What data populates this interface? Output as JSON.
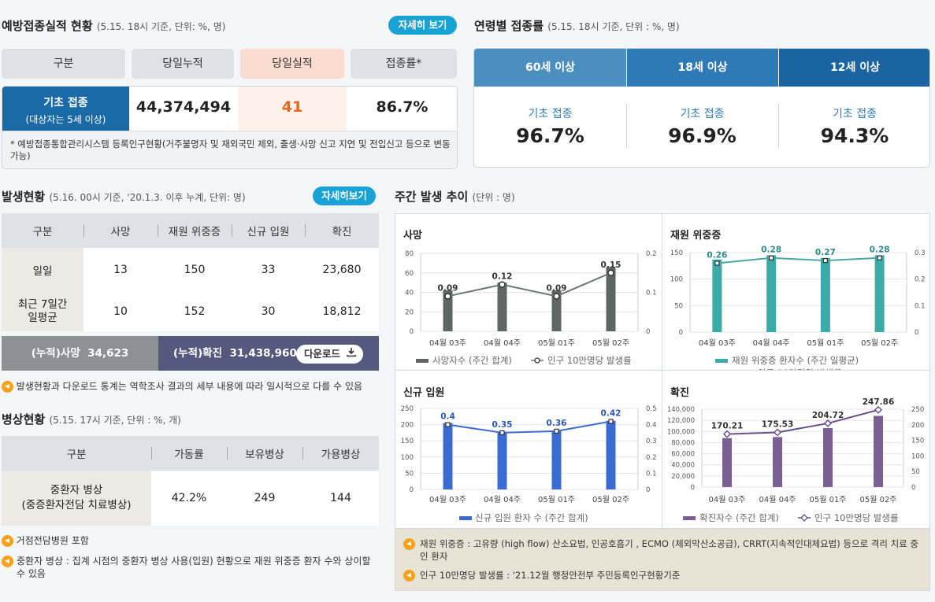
{
  "vaccine": {
    "title": "예방접종실적 현황",
    "subtitle": "(5.15. 18시 기준, 단위: %, 명)",
    "more": "자세히 보기",
    "headers": [
      "구분",
      "당일누적",
      "당일실적",
      "접종률*"
    ],
    "row_label": "기초 접종",
    "row_sub": "(대상자는 5세 이상)",
    "cumulative": "44,374,494",
    "daily": "41",
    "rate": "86.7%",
    "footnote": "* 예방접종통합관리시스템 등록인구현황(거주불명자 및 재외국민 제외, 출생·사망 신고 지연 및 전입신고 등으로 변동 가능)"
  },
  "age": {
    "title": "연령별 접종률",
    "subtitle": "(5.15. 18시 기준, 단위 : %, 명)",
    "columns": [
      {
        "label": "60세 이상",
        "metric": "기초 접종",
        "value": "96.7%"
      },
      {
        "label": "18세 이상",
        "metric": "기초 접종",
        "value": "96.9%"
      },
      {
        "label": "12세 이상",
        "metric": "기초 접종",
        "value": "94.3%"
      }
    ]
  },
  "occurrence": {
    "title": "발생현황",
    "subtitle": "(5.16. 00시 기준, '20.1.3. 이후 누계, 단위: 명)",
    "more": "자세히보기",
    "headers": [
      "구분",
      "사망",
      "재원 위중증",
      "신규 입원",
      "확진"
    ],
    "rows": [
      {
        "label": "일일",
        "label2": "",
        "values": [
          "13",
          "150",
          "33",
          "23,680"
        ]
      },
      {
        "label": "최근 7일간",
        "label2": "일평균",
        "values": [
          "10",
          "152",
          "30",
          "18,812"
        ]
      }
    ],
    "cum_death_label": "(누적)사망",
    "cum_death": "34,623",
    "cum_conf_label": "(누적)확진",
    "cum_conf": "31,438,960",
    "download": "다운로드",
    "note": "발생현황과 다운로드 통계는 역학조사 결과의 세부 내용에 따라 일시적으로 다를 수 있음"
  },
  "beds": {
    "title": "병상현황",
    "subtitle": "(5.15. 17시 기준, 단위 : %, 개)",
    "headers": [
      "구분",
      "가동률",
      "보유병상",
      "가용병상"
    ],
    "row_label1": "중환자 병상",
    "row_label2": "(중증환자전담 치료병상)",
    "values": [
      "42.2%",
      "249",
      "144"
    ],
    "notes": [
      "거점전담병원 포함",
      "중환자 병상 : 집계 시점의 중환자 병상 사용(입원) 현황으로 재원 위중증 환자 수와 상이할 수 있음"
    ]
  },
  "weekly": {
    "title": "주간 발생 추이",
    "subtitle": "(단위 : 명)",
    "notes": [
      "재원 위중증 : 고유량 (high flow) 산소요법, 인공호흡기 , ECMO (체외막산소공급), CRRT(지속적인대체요법) 등으로 격리 치료 중인 환자",
      "인구 10만명당 발생률 : '21.12월 행정안전부 주민등록인구현황기준"
    ]
  },
  "chart_data": [
    {
      "type": "bar",
      "title": "사망",
      "categories": [
        "04월 03주",
        "04월 04주",
        "05월 01주",
        "05월 02주"
      ],
      "series": [
        {
          "name": "사망자수 (주간 합계)",
          "values": [
            42,
            50,
            42,
            66
          ],
          "axis": "left"
        },
        {
          "name": "인구 10만명당 발생률",
          "type": "line",
          "values": [
            0.09,
            0.12,
            0.09,
            0.15
          ],
          "axis": "right"
        }
      ],
      "ylim": [
        0,
        80
      ],
      "yticks": [
        "0",
        "20",
        "40",
        "60",
        "80"
      ],
      "y2lim": [
        0,
        0.2
      ],
      "y2ticks": [
        "0",
        "0.1",
        "0.2"
      ],
      "color": "#5d6663"
    },
    {
      "type": "bar",
      "title": "재원 위중증",
      "categories": [
        "04월 03주",
        "04월 04주",
        "05월 01주",
        "05월 02주"
      ],
      "series": [
        {
          "name": "재원 위중증 환자수 (주간 일평균)",
          "values": [
            137,
            145,
            140,
            145
          ],
          "axis": "left"
        },
        {
          "name": "인구 10만명당 발생률",
          "type": "line",
          "values": [
            0.26,
            0.28,
            0.27,
            0.28
          ],
          "axis": "right"
        }
      ],
      "ylim": [
        0,
        150
      ],
      "yticks": [
        "0",
        "50",
        "100",
        "150"
      ],
      "y2lim": [
        0,
        0.3
      ],
      "y2ticks": [
        "0",
        "0.1",
        "0.2",
        "0.3"
      ],
      "color": "#3aaba6"
    },
    {
      "type": "bar",
      "title": "신규 입원",
      "categories": [
        "04월 03주",
        "04월 04주",
        "05월 01주",
        "05월 02주"
      ],
      "series": [
        {
          "name": "신규 입원 환자 수 (주간 합계)",
          "values": [
            205,
            178,
            182,
            212
          ],
          "axis": "left"
        },
        {
          "name": "인구 10만명당 발생률",
          "type": "line",
          "values": [
            0.4,
            0.35,
            0.36,
            0.42
          ],
          "axis": "right"
        }
      ],
      "ylim": [
        0,
        250
      ],
      "yticks": [
        "0",
        "50",
        "100",
        "150",
        "200",
        "250"
      ],
      "y2lim": [
        0,
        0.5
      ],
      "y2ticks": [
        "0",
        "0.1",
        "0.2",
        "0.3",
        "0.4",
        "0.5"
      ],
      "color": "#3b6bd0"
    },
    {
      "type": "bar",
      "title": "확진",
      "categories": [
        "04월 03주",
        "04월 04주",
        "05월 01주",
        "05월 02주"
      ],
      "series": [
        {
          "name": "확진자수 (주간 합계)",
          "values": [
            88000,
            90000,
            106000,
            128000
          ],
          "axis": "left"
        },
        {
          "name": "인구 10만명당 발생률",
          "type": "line",
          "values": [
            170.21,
            175.53,
            204.72,
            247.86
          ],
          "axis": "right"
        }
      ],
      "ylim": [
        0,
        140000
      ],
      "yticks": [
        "0",
        "20,000",
        "40,000",
        "60,000",
        "80,000",
        "100,000",
        "120,000",
        "140,000"
      ],
      "y2lim": [
        0,
        250
      ],
      "y2ticks": [
        "0",
        "50",
        "100",
        "150",
        "200",
        "250"
      ],
      "color": "#7a5f94"
    }
  ]
}
